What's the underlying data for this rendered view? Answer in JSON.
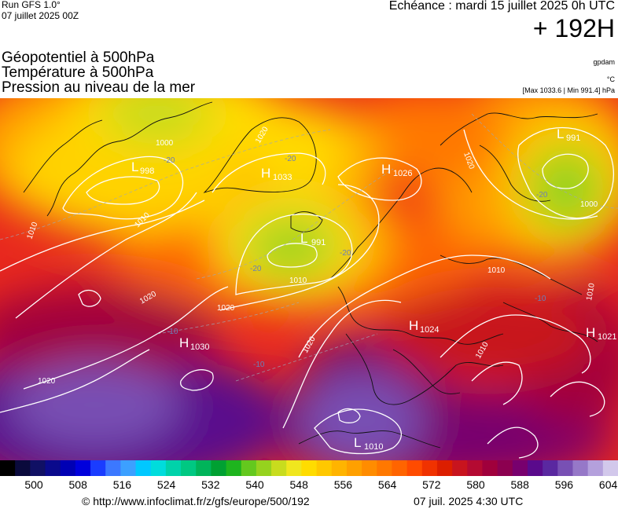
{
  "header": {
    "run": "Run GFS 1.0°",
    "run_date": "07 juillet 2025 00Z",
    "echeance": "Echéance : mardi 15 juillet 2025 0h UTC",
    "hours": "+ 192H",
    "params": [
      "Géopotentiel à 500hPa",
      "Température à 500hPa",
      "Pression au niveau de la mer"
    ],
    "unit_gpdam": "gpdam",
    "unit_c": "°C",
    "maxmin": "[Max 1033.6 | Min 991.4] hPa"
  },
  "map": {
    "pressure_centers": [
      {
        "type": "H",
        "value": "1030"
      },
      {
        "type": "H",
        "value": "1026"
      },
      {
        "type": "H",
        "value": "1033"
      },
      {
        "type": "H",
        "value": "1024"
      },
      {
        "type": "H",
        "value": "1021"
      },
      {
        "type": "L",
        "value": "991"
      },
      {
        "type": "L",
        "value": "991"
      },
      {
        "type": "L",
        "value": "998"
      },
      {
        "type": "L",
        "value": "1010"
      }
    ],
    "isobar_labels": [
      "1020",
      "1010",
      "1020",
      "1020",
      "1020",
      "1010",
      "1010",
      "1020",
      "1000",
      "1000",
      "1020",
      "1010",
      "1010",
      "1010"
    ],
    "temp_labels": [
      "-20",
      "-20",
      "-10",
      "-10",
      "-10",
      "-20",
      "-20",
      "-20"
    ]
  },
  "scale": {
    "colors": [
      "#000000",
      "#0a0a3c",
      "#101064",
      "#0a0a8c",
      "#0000b4",
      "#0000dc",
      "#1a3cff",
      "#3c78ff",
      "#3ca0ff",
      "#00c8ff",
      "#00dcdc",
      "#00d2aa",
      "#00c882",
      "#00b45a",
      "#00a032",
      "#1eb41e",
      "#64c81e",
      "#96d21e",
      "#c8dc1e",
      "#f0e61e",
      "#ffdc00",
      "#ffc800",
      "#ffb400",
      "#ffa000",
      "#ff8c00",
      "#ff7800",
      "#ff6400",
      "#ff4b00",
      "#f03200",
      "#dc1e00",
      "#c8141e",
      "#b40a32",
      "#a0003c",
      "#8c0050",
      "#78006e",
      "#5a0a8c",
      "#5a28a0",
      "#7850b4",
      "#9678c8",
      "#b4a0dc",
      "#d2c8eb"
    ],
    "labels": [
      "500",
      "508",
      "516",
      "524",
      "532",
      "540",
      "548",
      "556",
      "564",
      "572",
      "580",
      "588",
      "596",
      "604"
    ]
  },
  "footer": {
    "url": "© http://www.infoclimat.fr/z/gfs/europe/500/192",
    "updated": "07 juil. 2025  4:30 UTC"
  }
}
